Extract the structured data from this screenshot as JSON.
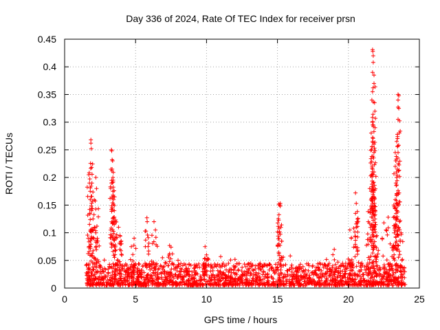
{
  "chart_data": {
    "type": "scatter",
    "title": "Day 336 of 2024, Rate Of TEC Index for receiver prsn",
    "xlabel": "GPS time / hours",
    "ylabel": "ROTI / TECUs",
    "xlim": [
      0,
      25
    ],
    "ylim": [
      0,
      0.45
    ],
    "xticks": [
      0,
      5,
      10,
      15,
      20,
      25
    ],
    "xtick_labels": [
      "0",
      "5",
      "10",
      "15",
      "20",
      "25"
    ],
    "yticks": [
      0,
      0.05,
      0.1,
      0.15,
      0.2,
      0.25,
      0.3,
      0.35,
      0.4,
      0.45
    ],
    "ytick_labels": [
      "0",
      "0.05",
      "0.1",
      "0.15",
      "0.2",
      "0.25",
      "0.3",
      "0.35",
      "0.4",
      "0.45"
    ],
    "grid": true,
    "marker": "+",
    "color": "#ff0000",
    "data_range_hours": [
      1.5,
      24.0
    ],
    "baseline_range": [
      0.005,
      0.045
    ],
    "peaks": [
      {
        "x": 1.7,
        "y": 0.205
      },
      {
        "x": 1.75,
        "y": 0.19
      },
      {
        "x": 1.8,
        "y": 0.175
      },
      {
        "x": 1.85,
        "y": 0.268
      },
      {
        "x": 1.85,
        "y": 0.262
      },
      {
        "x": 1.88,
        "y": 0.252
      },
      {
        "x": 1.9,
        "y": 0.218
      },
      {
        "x": 1.8,
        "y": 0.16
      },
      {
        "x": 1.9,
        "y": 0.14
      },
      {
        "x": 2.0,
        "y": 0.125
      },
      {
        "x": 2.1,
        "y": 0.11
      },
      {
        "x": 2.2,
        "y": 0.2
      },
      {
        "x": 2.25,
        "y": 0.18
      },
      {
        "x": 2.2,
        "y": 0.1
      },
      {
        "x": 2.3,
        "y": 0.09
      },
      {
        "x": 3.3,
        "y": 0.25
      },
      {
        "x": 3.32,
        "y": 0.248
      },
      {
        "x": 3.35,
        "y": 0.232
      },
      {
        "x": 3.38,
        "y": 0.23
      },
      {
        "x": 3.35,
        "y": 0.215
      },
      {
        "x": 3.4,
        "y": 0.2
      },
      {
        "x": 3.3,
        "y": 0.19
      },
      {
        "x": 3.4,
        "y": 0.175
      },
      {
        "x": 3.45,
        "y": 0.16
      },
      {
        "x": 3.5,
        "y": 0.14
      },
      {
        "x": 3.5,
        "y": 0.128
      },
      {
        "x": 3.6,
        "y": 0.12
      },
      {
        "x": 3.8,
        "y": 0.11
      },
      {
        "x": 3.9,
        "y": 0.095
      },
      {
        "x": 4.0,
        "y": 0.08
      },
      {
        "x": 4.9,
        "y": 0.09
      },
      {
        "x": 4.7,
        "y": 0.075
      },
      {
        "x": 5.8,
        "y": 0.127
      },
      {
        "x": 5.82,
        "y": 0.12
      },
      {
        "x": 6.3,
        "y": 0.12
      },
      {
        "x": 6.4,
        "y": 0.105
      },
      {
        "x": 7.4,
        "y": 0.077
      },
      {
        "x": 7.5,
        "y": 0.074
      },
      {
        "x": 9.9,
        "y": 0.075
      },
      {
        "x": 10.0,
        "y": 0.06
      },
      {
        "x": 15.1,
        "y": 0.152
      },
      {
        "x": 15.15,
        "y": 0.15
      },
      {
        "x": 15.2,
        "y": 0.153
      },
      {
        "x": 15.2,
        "y": 0.148
      },
      {
        "x": 15.1,
        "y": 0.108
      },
      {
        "x": 19.0,
        "y": 0.07
      },
      {
        "x": 20.1,
        "y": 0.105
      },
      {
        "x": 20.2,
        "y": 0.09
      },
      {
        "x": 20.5,
        "y": 0.172
      },
      {
        "x": 20.55,
        "y": 0.153
      },
      {
        "x": 20.5,
        "y": 0.135
      },
      {
        "x": 20.6,
        "y": 0.12
      },
      {
        "x": 21.4,
        "y": 0.12
      },
      {
        "x": 21.5,
        "y": 0.18
      },
      {
        "x": 21.6,
        "y": 0.148
      },
      {
        "x": 21.7,
        "y": 0.431
      },
      {
        "x": 21.72,
        "y": 0.428
      },
      {
        "x": 21.75,
        "y": 0.42
      },
      {
        "x": 21.75,
        "y": 0.408
      },
      {
        "x": 21.7,
        "y": 0.39
      },
      {
        "x": 21.8,
        "y": 0.385
      },
      {
        "x": 21.8,
        "y": 0.37
      },
      {
        "x": 21.7,
        "y": 0.355
      },
      {
        "x": 21.65,
        "y": 0.34
      },
      {
        "x": 21.7,
        "y": 0.3
      },
      {
        "x": 21.75,
        "y": 0.295
      },
      {
        "x": 21.7,
        "y": 0.265
      },
      {
        "x": 21.8,
        "y": 0.26
      },
      {
        "x": 21.8,
        "y": 0.245
      },
      {
        "x": 21.7,
        "y": 0.215
      },
      {
        "x": 21.8,
        "y": 0.21
      },
      {
        "x": 21.75,
        "y": 0.178
      },
      {
        "x": 21.6,
        "y": 0.175
      },
      {
        "x": 21.8,
        "y": 0.165
      },
      {
        "x": 21.9,
        "y": 0.14
      },
      {
        "x": 21.7,
        "y": 0.128
      },
      {
        "x": 21.8,
        "y": 0.11
      },
      {
        "x": 22.0,
        "y": 0.095
      },
      {
        "x": 22.5,
        "y": 0.118
      },
      {
        "x": 22.8,
        "y": 0.128
      },
      {
        "x": 23.2,
        "y": 0.15
      },
      {
        "x": 23.3,
        "y": 0.245
      },
      {
        "x": 23.35,
        "y": 0.23
      },
      {
        "x": 23.3,
        "y": 0.22
      },
      {
        "x": 23.4,
        "y": 0.2
      },
      {
        "x": 23.35,
        "y": 0.19
      },
      {
        "x": 23.4,
        "y": 0.17
      },
      {
        "x": 23.5,
        "y": 0.35
      },
      {
        "x": 23.55,
        "y": 0.348
      },
      {
        "x": 23.5,
        "y": 0.34
      },
      {
        "x": 23.5,
        "y": 0.327
      },
      {
        "x": 23.55,
        "y": 0.325
      },
      {
        "x": 23.5,
        "y": 0.305
      },
      {
        "x": 23.45,
        "y": 0.278
      },
      {
        "x": 23.5,
        "y": 0.245
      },
      {
        "x": 23.3,
        "y": 0.16
      },
      {
        "x": 23.4,
        "y": 0.14
      },
      {
        "x": 23.6,
        "y": 0.12
      },
      {
        "x": 23.7,
        "y": 0.1
      }
    ]
  }
}
